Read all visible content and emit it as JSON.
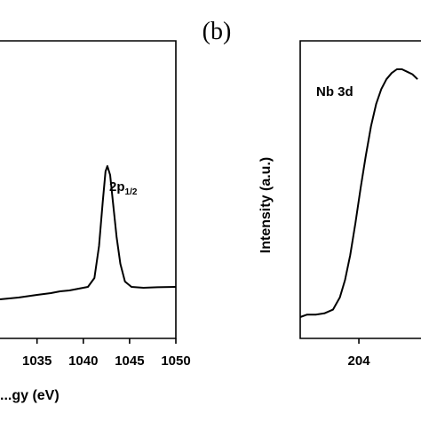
{
  "panel_label": "(b)",
  "chart_data": [
    {
      "type": "line",
      "title": "",
      "xlabel": "...gy (eV)",
      "ylabel": "",
      "xlim": [
        1031,
        1050
      ],
      "ylim": [
        0,
        1
      ],
      "x_ticks": [
        1035,
        1040,
        1045,
        1050
      ],
      "x_tick_labels": [
        "1035",
        "1040",
        "1045",
        "1050"
      ],
      "grid": false,
      "annotations": [
        {
          "text": "2p",
          "subscript": "1/2",
          "x": 1043.4
        }
      ],
      "series": [
        {
          "x": [
            1031,
            1033,
            1035,
            1036.5,
            1037.5,
            1038.5,
            1039.5,
            1040.5,
            1041.2,
            1041.7,
            1042.1,
            1042.4,
            1042.6,
            1042.9,
            1043.2,
            1043.6,
            1044.0,
            1044.5,
            1045.2,
            1046.5,
            1048,
            1050
          ],
          "y": [
            0.0,
            0.01,
            0.025,
            0.035,
            0.045,
            0.05,
            0.06,
            0.07,
            0.12,
            0.3,
            0.55,
            0.72,
            0.75,
            0.7,
            0.55,
            0.35,
            0.2,
            0.1,
            0.07,
            0.065,
            0.068,
            0.07
          ]
        }
      ]
    },
    {
      "type": "line",
      "title": "",
      "xlabel": "",
      "ylabel": "Intensity (a.u.)",
      "xlim": [
        200.6,
        207.6
      ],
      "ylim": [
        0,
        1
      ],
      "x_ticks": [
        204
      ],
      "x_tick_labels": [
        "204"
      ],
      "grid": false,
      "annotations": [
        {
          "text": "Nb 3d"
        }
      ],
      "series": [
        {
          "x": [
            200.6,
            201.0,
            201.5,
            202.0,
            202.5,
            202.9,
            203.2,
            203.5,
            203.8,
            204.1,
            204.4,
            204.7,
            205.0,
            205.3,
            205.6,
            205.9,
            206.2,
            206.5,
            206.8,
            207.1,
            207.4
          ],
          "y": [
            0.0,
            0.01,
            0.01,
            0.015,
            0.03,
            0.08,
            0.15,
            0.25,
            0.38,
            0.52,
            0.65,
            0.77,
            0.86,
            0.92,
            0.96,
            0.985,
            1.0,
            1.0,
            0.99,
            0.98,
            0.96
          ]
        }
      ]
    }
  ]
}
